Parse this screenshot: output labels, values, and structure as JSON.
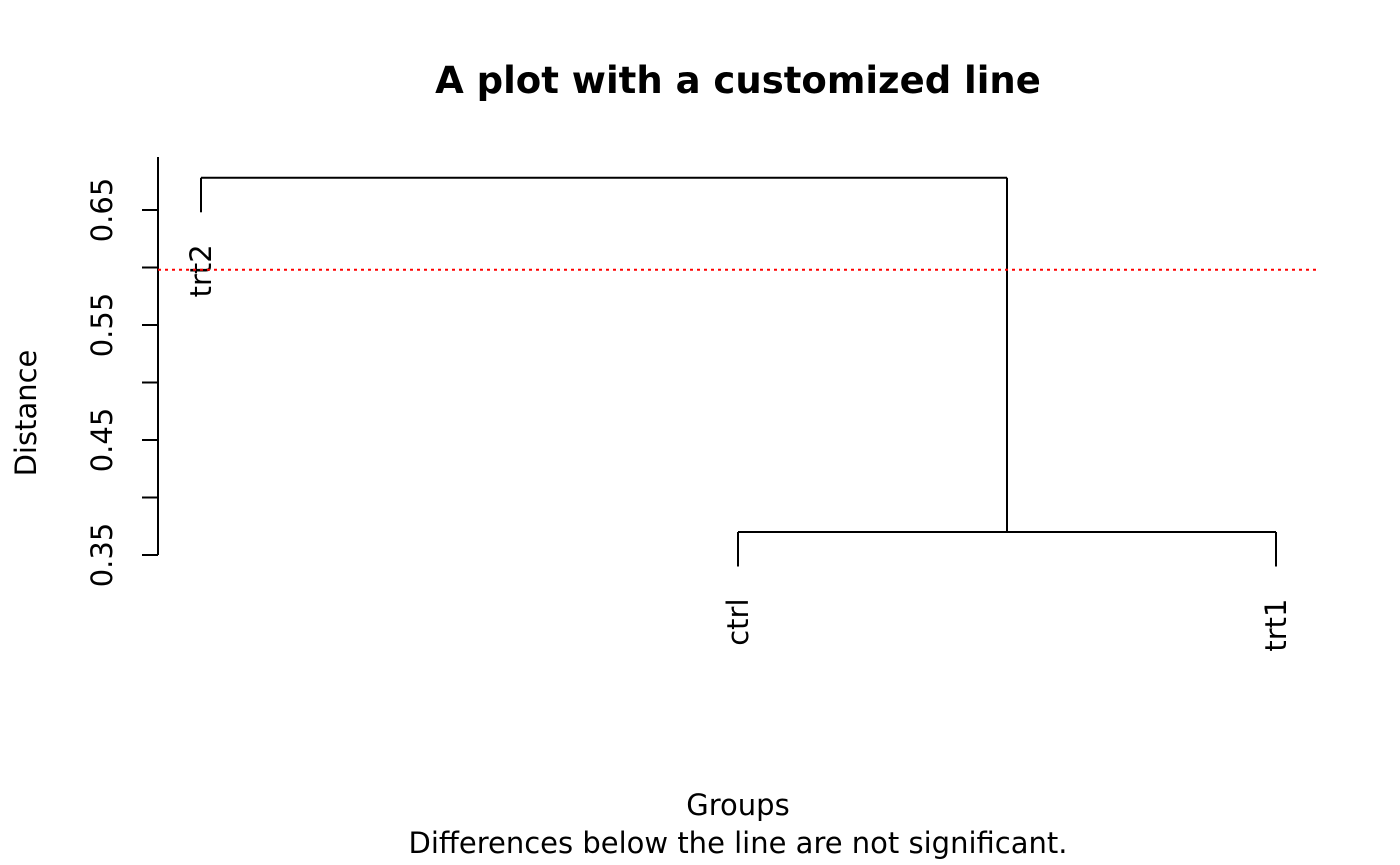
{
  "chart_data": {
    "type": "dendrogram",
    "title": "A plot with a customized line",
    "xlabel": "Groups",
    "subtitle": "Differences below the line are not significant.",
    "ylabel": "Distance",
    "ylim": [
      0.35,
      0.7
    ],
    "yticks": [
      0.35,
      0.4,
      0.45,
      0.5,
      0.55,
      0.6,
      0.65
    ],
    "ytick_labels": [
      "0.35",
      "",
      "0.45",
      "",
      "0.55",
      "",
      "0.65"
    ],
    "leaves": [
      {
        "label": "trt2",
        "leaf_height": 0.648
      },
      {
        "label": "ctrl",
        "leaf_height": 0.34
      },
      {
        "label": "trt1",
        "leaf_height": 0.34
      }
    ],
    "merges": [
      {
        "left": "ctrl",
        "right": "trt1",
        "height": 0.37
      },
      {
        "left": "trt2",
        "right": "ctrl+trt1",
        "height": 0.678
      }
    ],
    "threshold_line": {
      "value": 0.598,
      "color": "#ff0000",
      "style": "dotted"
    },
    "line_color": "#000000",
    "grid": false,
    "legend": "none"
  }
}
